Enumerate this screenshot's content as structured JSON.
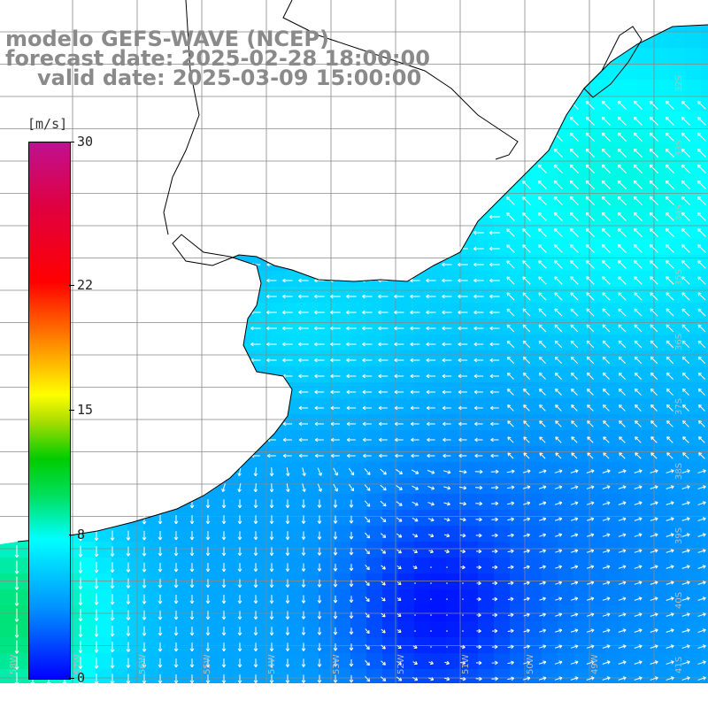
{
  "title": {
    "model": "modelo GEFS-WAVE (NCEP)",
    "forecast": "forecast date: 2025-02-28 18:00:00",
    "valid": "valid date: 2025-03-09 15:00:00"
  },
  "colorbar": {
    "unit": "[m/s]",
    "ticks": [
      "30",
      "22",
      "15",
      "8",
      "0"
    ],
    "tick_values": [
      30,
      22,
      15,
      8,
      0
    ],
    "range": [
      0,
      30
    ],
    "colors": [
      "#0000ff",
      "#0090ff",
      "#00ffff",
      "#00cc00",
      "#ffff00",
      "#ff5500",
      "#ff0000",
      "#c01090"
    ]
  },
  "grid": {
    "lon_labels": [
      "58W",
      "57W",
      "56W",
      "55W",
      "54W",
      "53W",
      "52W",
      "51W",
      "50W",
      "49W"
    ],
    "lat_labels": [
      "32S",
      "33S",
      "34S",
      "35S",
      "36S",
      "37S",
      "38S",
      "39S",
      "40S",
      "41S"
    ]
  },
  "field": {
    "variable": "wind speed and direction",
    "description_min_region": "calm zone near 53W 40S",
    "max_region": "strong southerly winds in southwest corner"
  }
}
